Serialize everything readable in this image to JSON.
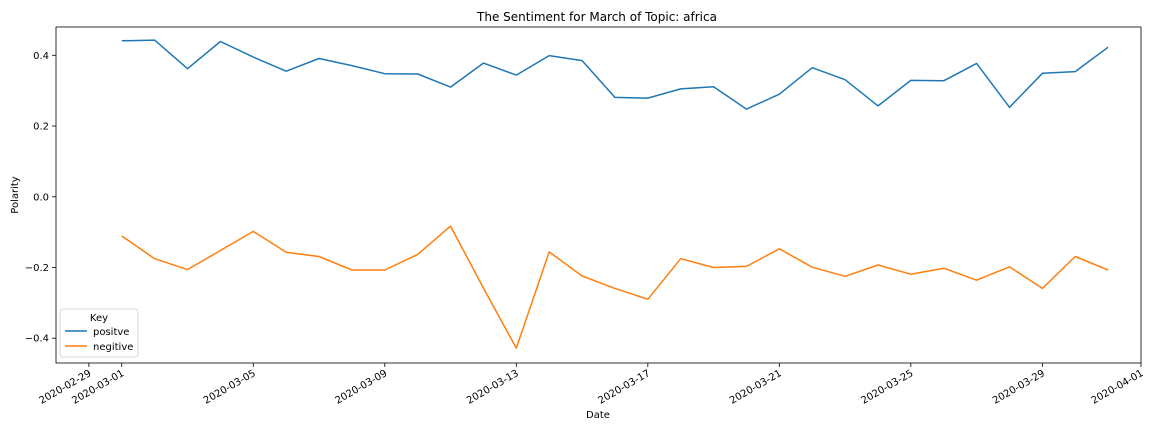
{
  "chart_data": {
    "type": "line",
    "title": "The Sentiment for March of Topic: africa",
    "xlabel": "Date",
    "ylabel": "Polarity",
    "xlim": [
      "2020-02-28",
      "2020-04-01"
    ],
    "ylim": [
      -0.47,
      0.48
    ],
    "x_ticks": [
      "2020-02-29",
      "2020-03-01",
      "2020-03-05",
      "2020-03-09",
      "2020-03-13",
      "2020-03-17",
      "2020-03-21",
      "2020-03-25",
      "2020-03-29",
      "2020-04-01"
    ],
    "y_ticks": [
      0.4,
      0.2,
      0.0,
      -0.2,
      -0.4
    ],
    "y_tick_labels": [
      "0.4",
      "0.2",
      "0.0",
      "−0.2",
      "−0.4"
    ],
    "grid": false,
    "legend": {
      "title": "Key",
      "position": "lower-left"
    },
    "x": [
      "2020-03-01",
      "2020-03-02",
      "2020-03-03",
      "2020-03-04",
      "2020-03-05",
      "2020-03-06",
      "2020-03-07",
      "2020-03-08",
      "2020-03-09",
      "2020-03-10",
      "2020-03-11",
      "2020-03-12",
      "2020-03-13",
      "2020-03-14",
      "2020-03-15",
      "2020-03-16",
      "2020-03-17",
      "2020-03-18",
      "2020-03-19",
      "2020-03-20",
      "2020-03-21",
      "2020-03-22",
      "2020-03-23",
      "2020-03-24",
      "2020-03-25",
      "2020-03-26",
      "2020-03-27",
      "2020-03-28",
      "2020-03-29",
      "2020-03-30",
      "2020-03-31"
    ],
    "series": [
      {
        "name": "positve",
        "color": "#1f77b4",
        "values": [
          0.441,
          0.443,
          0.362,
          0.439,
          0.395,
          0.355,
          0.391,
          0.371,
          0.348,
          0.347,
          0.31,
          0.378,
          0.344,
          0.399,
          0.385,
          0.281,
          0.279,
          0.305,
          0.311,
          0.248,
          0.29,
          0.365,
          0.331,
          0.257,
          0.329,
          0.328,
          0.377,
          0.253,
          0.349,
          0.354,
          0.423
        ]
      },
      {
        "name": "negitive",
        "color": "#ff7f0e",
        "values": [
          -0.111,
          -0.175,
          -0.206,
          -0.152,
          -0.098,
          -0.157,
          -0.169,
          -0.207,
          -0.207,
          -0.163,
          -0.083,
          -0.258,
          -0.428,
          -0.156,
          -0.224,
          -0.259,
          -0.29,
          -0.175,
          -0.2,
          -0.197,
          -0.147,
          -0.199,
          -0.225,
          -0.193,
          -0.219,
          -0.202,
          -0.236,
          -0.198,
          -0.259,
          -0.169,
          -0.207
        ]
      }
    ]
  }
}
